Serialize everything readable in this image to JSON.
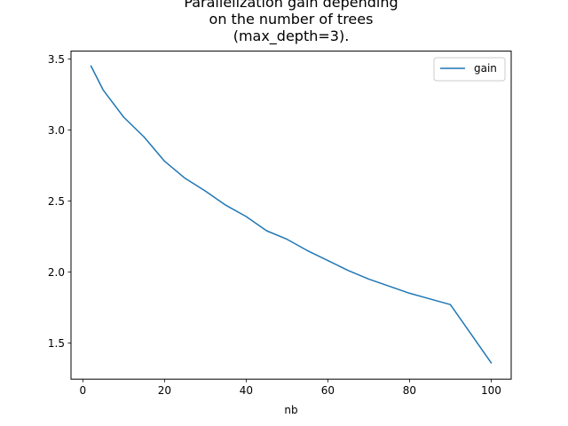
{
  "chart_data": {
    "type": "line",
    "title_lines": [
      "Parallelization gain depending",
      "on the number of trees",
      "(max_depth=3)."
    ],
    "xlabel": "nb",
    "ylabel": "",
    "xlim": [
      -2.9,
      104.9
    ],
    "ylim": [
      1.245,
      3.555
    ],
    "xticks": [
      0,
      20,
      40,
      60,
      80,
      100
    ],
    "xtick_labels": [
      "0",
      "20",
      "40",
      "60",
      "80",
      "100"
    ],
    "yticks": [
      1.5,
      2.0,
      2.5,
      3.0,
      3.5
    ],
    "ytick_labels": [
      "1.5",
      "2.0",
      "2.5",
      "3.0",
      "3.5"
    ],
    "grid": false,
    "legend_position": "upper right",
    "series": [
      {
        "name": "gain",
        "color": "#1f77b4",
        "x": [
          2,
          5,
          10,
          15,
          20,
          25,
          30,
          35,
          40,
          45,
          50,
          55,
          60,
          65,
          70,
          75,
          80,
          85,
          90,
          100
        ],
        "y": [
          3.45,
          3.28,
          3.09,
          2.95,
          2.78,
          2.66,
          2.57,
          2.47,
          2.39,
          2.29,
          2.23,
          2.15,
          2.08,
          2.01,
          1.95,
          1.9,
          1.85,
          1.81,
          1.77,
          1.36
        ]
      }
    ]
  }
}
